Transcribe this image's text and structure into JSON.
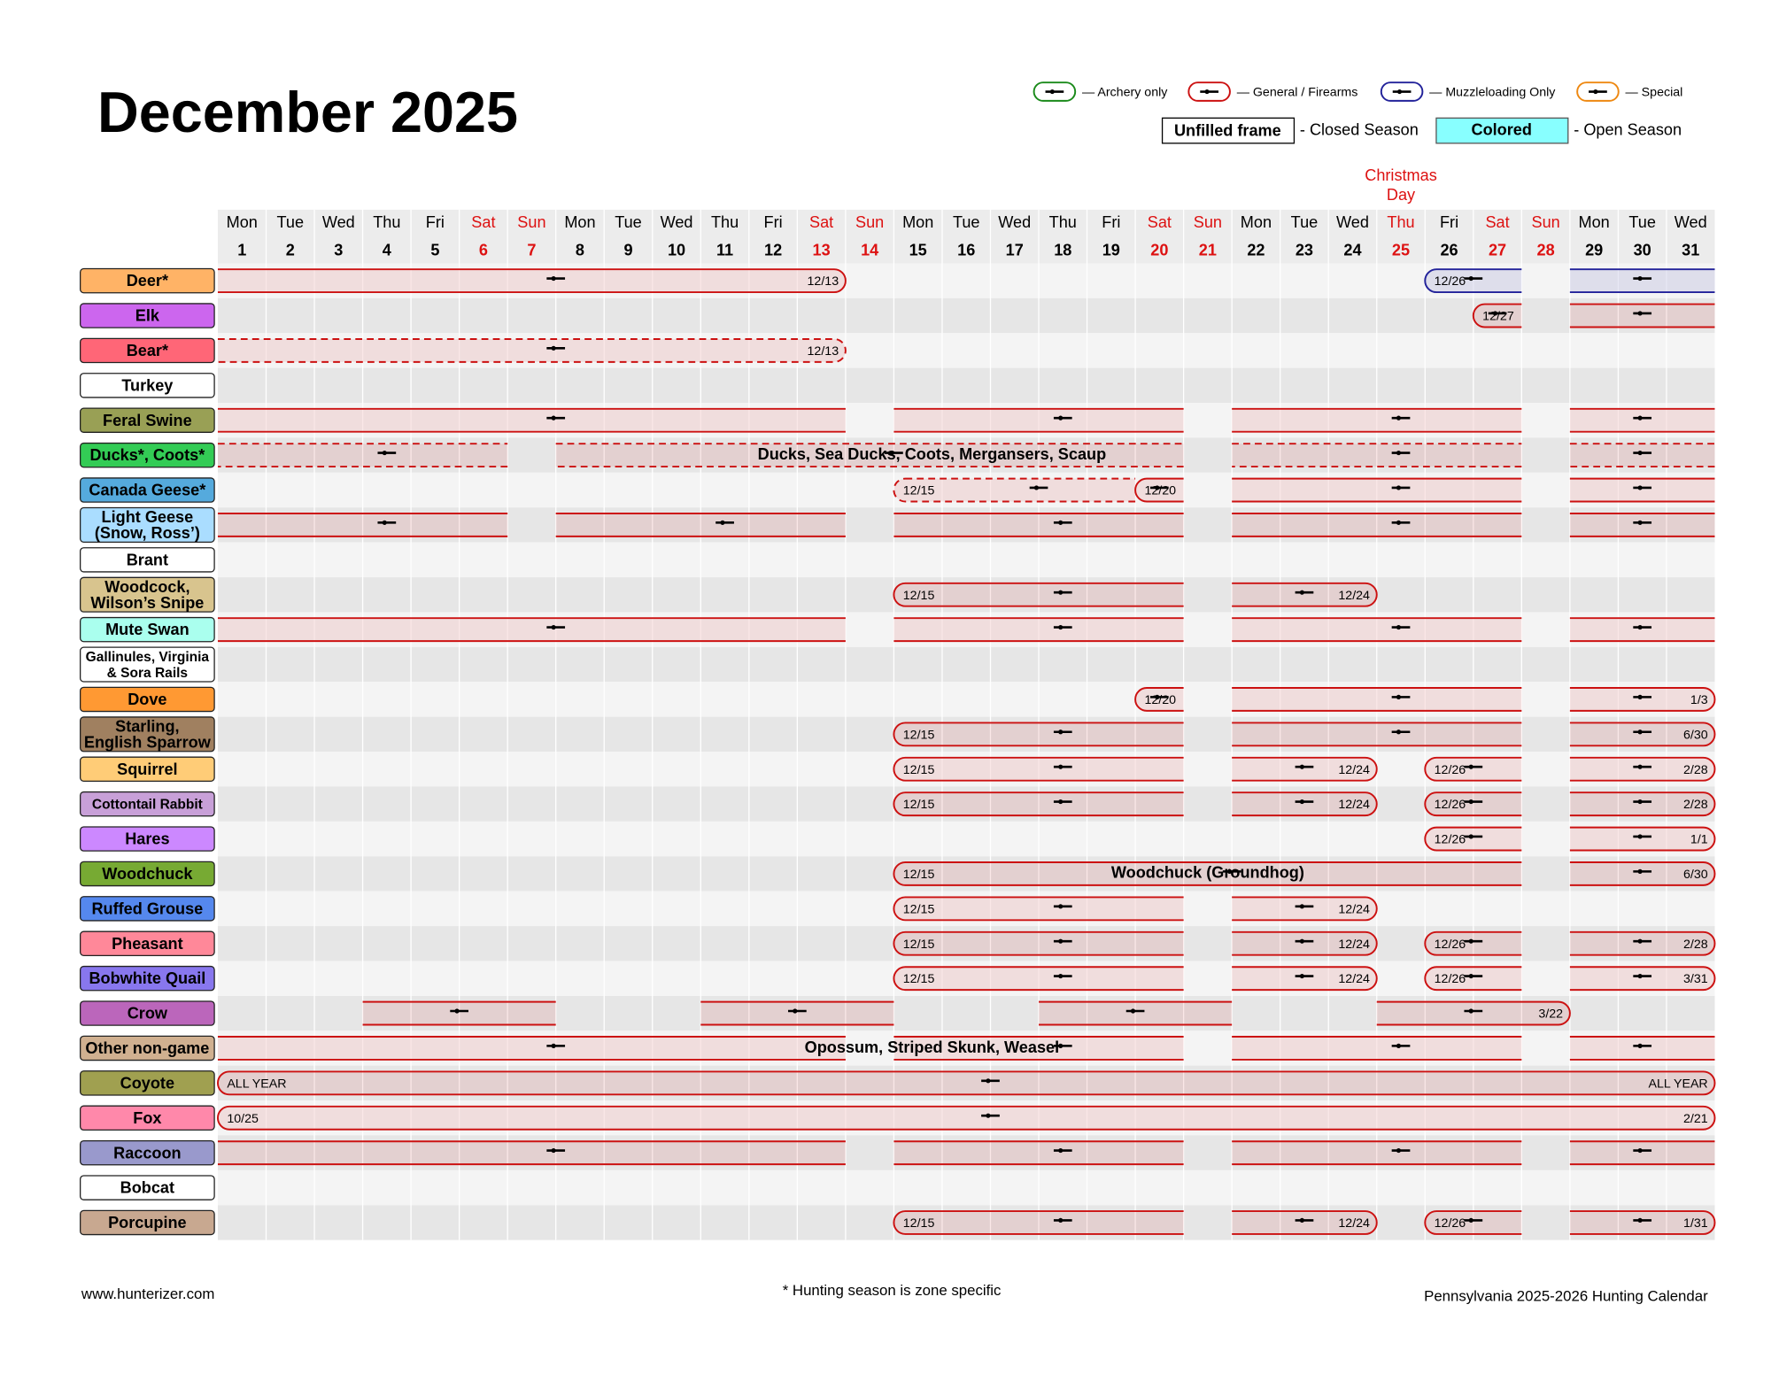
{
  "title": "December 2025",
  "legend": [
    {
      "color": "#1a8a1a",
      "label": "— Archery only"
    },
    {
      "color": "#cc1111",
      "label": "— General / Firearms"
    },
    {
      "color": "#22229a",
      "label": "— Muzzleloading Only"
    },
    {
      "color": "#ee8811",
      "label": "— Special"
    }
  ],
  "season_key": {
    "closed_box": "Unfilled frame",
    "closed_text": "- Closed Season",
    "open_box": "Colored",
    "open_color": "#88ffff",
    "open_text": "- Open Season"
  },
  "annotation": {
    "day": 25,
    "lines": [
      "Christmas",
      "Day"
    ],
    "color": "#dd1111"
  },
  "days": [
    {
      "weekday": "Mon",
      "date": 1,
      "color": "#000"
    },
    {
      "weekday": "Tue",
      "date": 2,
      "color": "#000"
    },
    {
      "weekday": "Wed",
      "date": 3,
      "color": "#000"
    },
    {
      "weekday": "Thu",
      "date": 4,
      "color": "#000"
    },
    {
      "weekday": "Fri",
      "date": 5,
      "color": "#000"
    },
    {
      "weekday": "Sat",
      "date": 6,
      "color": "#dd1111"
    },
    {
      "weekday": "Sun",
      "date": 7,
      "color": "#dd1111"
    },
    {
      "weekday": "Mon",
      "date": 8,
      "color": "#000"
    },
    {
      "weekday": "Tue",
      "date": 9,
      "color": "#000"
    },
    {
      "weekday": "Wed",
      "date": 10,
      "color": "#000"
    },
    {
      "weekday": "Thu",
      "date": 11,
      "color": "#000"
    },
    {
      "weekday": "Fri",
      "date": 12,
      "color": "#000"
    },
    {
      "weekday": "Sat",
      "date": 13,
      "color": "#dd1111"
    },
    {
      "weekday": "Sun",
      "date": 14,
      "color": "#dd1111"
    },
    {
      "weekday": "Mon",
      "date": 15,
      "color": "#000"
    },
    {
      "weekday": "Tue",
      "date": 16,
      "color": "#000"
    },
    {
      "weekday": "Wed",
      "date": 17,
      "color": "#000"
    },
    {
      "weekday": "Thu",
      "date": 18,
      "color": "#000"
    },
    {
      "weekday": "Fri",
      "date": 19,
      "color": "#000"
    },
    {
      "weekday": "Sat",
      "date": 20,
      "color": "#dd1111"
    },
    {
      "weekday": "Sun",
      "date": 21,
      "color": "#dd1111"
    },
    {
      "weekday": "Mon",
      "date": 22,
      "color": "#000"
    },
    {
      "weekday": "Tue",
      "date": 23,
      "color": "#000"
    },
    {
      "weekday": "Wed",
      "date": 24,
      "color": "#000"
    },
    {
      "weekday": "Thu",
      "date": 25,
      "color": "#dd1111"
    },
    {
      "weekday": "Fri",
      "date": 26,
      "color": "#000"
    },
    {
      "weekday": "Sat",
      "date": 27,
      "color": "#dd1111"
    },
    {
      "weekday": "Sun",
      "date": 28,
      "color": "#dd1111"
    },
    {
      "weekday": "Mon",
      "date": 29,
      "color": "#000"
    },
    {
      "weekday": "Tue",
      "date": 30,
      "color": "#000"
    },
    {
      "weekday": "Wed",
      "date": 31,
      "color": "#000"
    }
  ],
  "bar_color": "#cc1111",
  "rows": [
    {
      "label": [
        "Deer*"
      ],
      "color": "#ffb366",
      "segments": [
        {
          "start": 1,
          "end": 13,
          "right_label": "12/13"
        },
        {
          "start": 26,
          "end": 27,
          "left_label": "12/26",
          "color": "#22229a"
        },
        {
          "start": 29,
          "end": 31,
          "color": "#22229a"
        }
      ]
    },
    {
      "label": [
        "Elk"
      ],
      "color": "#cc66ee",
      "segments": [
        {
          "start": 27,
          "end": 27,
          "left_label": "12/27"
        },
        {
          "start": 29,
          "end": 31
        }
      ]
    },
    {
      "label": [
        "Bear*"
      ],
      "color": "#ff6677",
      "segments": [
        {
          "start": 1,
          "end": 13,
          "right_label": "12/13",
          "dashed": true
        }
      ]
    },
    {
      "label": [
        "Turkey"
      ],
      "color": "#ffffff",
      "segments": []
    },
    {
      "label": [
        "Feral Swine"
      ],
      "color": "#99a055",
      "segments": [
        {
          "start": 1,
          "end": 13
        },
        {
          "start": 15,
          "end": 20
        },
        {
          "start": 22,
          "end": 27
        },
        {
          "start": 29,
          "end": 31
        }
      ]
    },
    {
      "label": [
        "Ducks*, Coots*"
      ],
      "color": "#33cc55",
      "note": "Ducks, Sea Ducks, Coots, Mergansers, Scaup",
      "segments": [
        {
          "start": 1,
          "end": 6,
          "dashed": true
        },
        {
          "start": 8,
          "end": 20,
          "dashed": true
        },
        {
          "start": 22,
          "end": 27,
          "dashed": true
        },
        {
          "start": 29,
          "end": 31,
          "dashed": true
        }
      ]
    },
    {
      "label": [
        "Canada Geese*"
      ],
      "color": "#55aadd",
      "segments": [
        {
          "start": 15,
          "end": 19,
          "left_label": "12/15",
          "dashed": true
        },
        {
          "start": 20,
          "end": 20,
          "left_label": "12/20"
        },
        {
          "start": 22,
          "end": 27
        },
        {
          "start": 29,
          "end": 31
        }
      ]
    },
    {
      "label": [
        "Light Geese",
        "(Snow, Ross’)"
      ],
      "color": "#aaddff",
      "segments": [
        {
          "start": 1,
          "end": 6
        },
        {
          "start": 8,
          "end": 13
        },
        {
          "start": 15,
          "end": 20
        },
        {
          "start": 22,
          "end": 27
        },
        {
          "start": 29,
          "end": 31
        }
      ]
    },
    {
      "label": [
        "Brant"
      ],
      "color": "#ffffff",
      "segments": []
    },
    {
      "label": [
        "Woodcock,",
        "Wilson’s Snipe"
      ],
      "color": "#d8c48e",
      "segments": [
        {
          "start": 15,
          "end": 20,
          "left_label": "12/15"
        },
        {
          "start": 22,
          "end": 24,
          "right_label": "12/24"
        }
      ]
    },
    {
      "label": [
        "Mute Swan"
      ],
      "color": "#aaffee",
      "segments": [
        {
          "start": 1,
          "end": 13
        },
        {
          "start": 15,
          "end": 20
        },
        {
          "start": 22,
          "end": 27
        },
        {
          "start": 29,
          "end": 31
        }
      ]
    },
    {
      "label": [
        "Gallinules, Virginia",
        "& Sora Rails"
      ],
      "color": "#ffffff",
      "segments": []
    },
    {
      "label": [
        "Dove"
      ],
      "color": "#ff9933",
      "segments": [
        {
          "start": 20,
          "end": 20,
          "left_label": "12/20"
        },
        {
          "start": 22,
          "end": 27
        },
        {
          "start": 29,
          "end": 31,
          "right_label": "1/3"
        }
      ]
    },
    {
      "label": [
        "Starling,",
        "English Sparrow"
      ],
      "color": "#a08060",
      "segments": [
        {
          "start": 15,
          "end": 20,
          "left_label": "12/15"
        },
        {
          "start": 22,
          "end": 27
        },
        {
          "start": 29,
          "end": 31,
          "right_label": "6/30"
        }
      ]
    },
    {
      "label": [
        "Squirrel"
      ],
      "color": "#ffcc77",
      "segments": [
        {
          "start": 15,
          "end": 20,
          "left_label": "12/15"
        },
        {
          "start": 22,
          "end": 24,
          "right_label": "12/24"
        },
        {
          "start": 26,
          "end": 27,
          "left_label": "12/26"
        },
        {
          "start": 29,
          "end": 31,
          "right_label": "2/28"
        }
      ]
    },
    {
      "label": [
        "Cottontail Rabbit"
      ],
      "color": "#c8a0d8",
      "segments": [
        {
          "start": 15,
          "end": 20,
          "left_label": "12/15"
        },
        {
          "start": 22,
          "end": 24,
          "right_label": "12/24"
        },
        {
          "start": 26,
          "end": 27,
          "left_label": "12/26"
        },
        {
          "start": 29,
          "end": 31,
          "right_label": "2/28"
        }
      ]
    },
    {
      "label": [
        "Hares"
      ],
      "color": "#cc88ff",
      "segments": [
        {
          "start": 26,
          "end": 27,
          "left_label": "12/26"
        },
        {
          "start": 29,
          "end": 31,
          "right_label": "1/1"
        }
      ]
    },
    {
      "label": [
        "Woodchuck"
      ],
      "color": "#77aa33",
      "note": "Woodchuck (Groundhog)",
      "segments": [
        {
          "start": 15,
          "end": 27,
          "left_label": "12/15"
        },
        {
          "start": 29,
          "end": 31,
          "right_label": "6/30"
        }
      ]
    },
    {
      "label": [
        "Ruffed Grouse"
      ],
      "color": "#5588ee",
      "segments": [
        {
          "start": 15,
          "end": 20,
          "left_label": "12/15"
        },
        {
          "start": 22,
          "end": 24,
          "right_label": "12/24"
        }
      ]
    },
    {
      "label": [
        "Pheasant"
      ],
      "color": "#ff8899",
      "segments": [
        {
          "start": 15,
          "end": 20,
          "left_label": "12/15"
        },
        {
          "start": 22,
          "end": 24,
          "right_label": "12/24"
        },
        {
          "start": 26,
          "end": 27,
          "left_label": "12/26"
        },
        {
          "start": 29,
          "end": 31,
          "right_label": "2/28"
        }
      ]
    },
    {
      "label": [
        "Bobwhite Quail"
      ],
      "color": "#8877ee",
      "segments": [
        {
          "start": 15,
          "end": 20,
          "left_label": "12/15"
        },
        {
          "start": 22,
          "end": 24,
          "right_label": "12/24"
        },
        {
          "start": 26,
          "end": 27,
          "left_label": "12/26"
        },
        {
          "start": 29,
          "end": 31,
          "right_label": "3/31"
        }
      ]
    },
    {
      "label": [
        "Crow"
      ],
      "color": "#bb66bb",
      "segments": [
        {
          "start": 4,
          "end": 7
        },
        {
          "start": 11,
          "end": 14
        },
        {
          "start": 18,
          "end": 21
        },
        {
          "start": 25,
          "end": 28,
          "right_label": "3/22"
        }
      ]
    },
    {
      "label": [
        "Other non-game"
      ],
      "color": "#d0b090",
      "note": "Opossum, Striped Skunk, Weasel",
      "segments": [
        {
          "start": 1,
          "end": 13
        },
        {
          "start": 15,
          "end": 20
        },
        {
          "start": 22,
          "end": 27
        },
        {
          "start": 29,
          "end": 31
        }
      ]
    },
    {
      "label": [
        "Coyote"
      ],
      "color": "#a0a050",
      "segments": [
        {
          "start": 1,
          "end": 31,
          "left_label": "ALL YEAR",
          "right_label": "ALL YEAR"
        }
      ]
    },
    {
      "label": [
        "Fox"
      ],
      "color": "#ff88aa",
      "segments": [
        {
          "start": 1,
          "end": 31,
          "left_label": "10/25",
          "right_label": "2/21"
        }
      ]
    },
    {
      "label": [
        "Raccoon"
      ],
      "color": "#9999cc",
      "segments": [
        {
          "start": 1,
          "end": 13
        },
        {
          "start": 15,
          "end": 20
        },
        {
          "start": 22,
          "end": 27
        },
        {
          "start": 29,
          "end": 31
        }
      ]
    },
    {
      "label": [
        "Bobcat"
      ],
      "color": "#ffffff",
      "segments": []
    },
    {
      "label": [
        "Porcupine"
      ],
      "color": "#c8a890",
      "segments": [
        {
          "start": 15,
          "end": 20,
          "left_label": "12/15"
        },
        {
          "start": 22,
          "end": 24,
          "right_label": "12/24"
        },
        {
          "start": 26,
          "end": 27,
          "left_label": "12/26"
        },
        {
          "start": 29,
          "end": 31,
          "right_label": "1/31"
        }
      ]
    }
  ],
  "footer": {
    "left": "www.hunterizer.com",
    "center": "* Hunting season is zone specific",
    "right": "Pennsylvania 2025-2026 Hunting Calendar"
  }
}
